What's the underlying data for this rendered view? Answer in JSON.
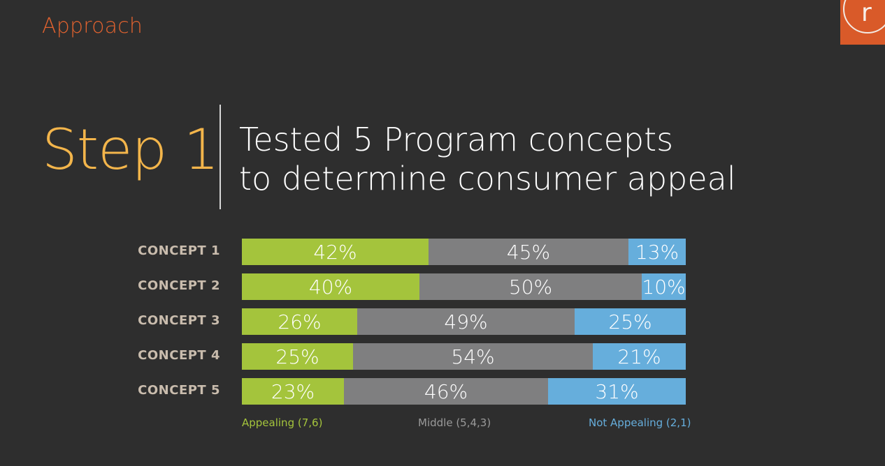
{
  "section_label": "Approach",
  "logo": {
    "letter": "r"
  },
  "step_title": "Step 1",
  "headline": {
    "line1": "Tested 5 Program concepts",
    "line2": "to determine consumer appeal"
  },
  "colors": {
    "background": "#2e2e2e",
    "accent_orange": "#e0622f",
    "step_yellow": "#f3b54b",
    "appealing": "#a4c43c",
    "middle": "#7f7f80",
    "not_appealing": "#66aedc"
  },
  "chart_data": {
    "type": "bar",
    "orientation": "horizontal",
    "stacked": true,
    "normalized": "percent",
    "categories": [
      "CONCEPT 1",
      "CONCEPT 2",
      "CONCEPT 3",
      "CONCEPT 4",
      "CONCEPT 5"
    ],
    "series": [
      {
        "name": "Appealing (7,6)",
        "key": "appealing",
        "color": "#a4c43c",
        "values": [
          42,
          40,
          26,
          25,
          23
        ]
      },
      {
        "name": "Middle (5,4,3)",
        "key": "middle",
        "color": "#7f7f80",
        "values": [
          45,
          50,
          49,
          54,
          46
        ]
      },
      {
        "name": "Not Appealing (2,1)",
        "key": "notappealing",
        "color": "#66aedc",
        "values": [
          13,
          10,
          25,
          21,
          31
        ]
      }
    ],
    "value_suffix": "%",
    "legend_position": "bottom",
    "grid": false
  }
}
